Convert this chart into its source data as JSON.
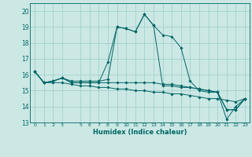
{
  "xlabel": "Humidex (Indice chaleur)",
  "background_color": "#cce8e4",
  "grid_color": "#99cccc",
  "line_color": "#006666",
  "xlim": [
    -0.5,
    23.5
  ],
  "ylim": [
    13,
    20.5
  ],
  "yticks": [
    13,
    14,
    15,
    16,
    17,
    18,
    19,
    20
  ],
  "xticks": [
    0,
    1,
    2,
    3,
    5,
    6,
    7,
    8,
    9,
    10,
    11,
    12,
    13,
    14,
    15,
    16,
    17,
    18,
    19,
    20,
    21,
    22,
    23
  ],
  "xtick_labels": [
    "0",
    "1",
    "2",
    "3",
    "5",
    "6",
    "7",
    "8",
    "9",
    "10",
    "11",
    "12",
    "13",
    "14",
    "15",
    "16",
    "17",
    "18",
    "19",
    "20",
    "21",
    "22",
    "23"
  ],
  "series": [
    [
      16.2,
      15.5,
      15.6,
      15.8,
      15.6,
      15.6,
      15.6,
      15.6,
      15.7,
      19.0,
      18.9,
      18.7,
      19.8,
      19.1,
      18.5,
      18.4,
      17.7,
      15.6,
      15.0,
      14.9,
      14.9,
      13.2,
      14.0,
      14.5
    ],
    [
      16.2,
      15.5,
      15.6,
      15.8,
      15.5,
      15.5,
      15.5,
      15.5,
      16.8,
      19.0,
      18.9,
      18.7,
      19.8,
      19.1,
      15.3,
      15.3,
      15.2,
      15.2,
      15.1,
      15.0,
      14.9,
      13.8,
      13.8,
      14.5
    ],
    [
      16.2,
      15.5,
      15.6,
      15.8,
      15.5,
      15.5,
      15.5,
      15.5,
      15.5,
      15.5,
      15.5,
      15.5,
      15.5,
      15.5,
      15.4,
      15.4,
      15.3,
      15.2,
      15.1,
      15.0,
      14.9,
      13.8,
      13.8,
      14.5
    ],
    [
      16.2,
      15.5,
      15.5,
      15.5,
      15.4,
      15.3,
      15.3,
      15.2,
      15.2,
      15.1,
      15.1,
      15.0,
      15.0,
      14.9,
      14.9,
      14.8,
      14.8,
      14.7,
      14.6,
      14.5,
      14.5,
      14.4,
      14.3,
      14.5
    ]
  ]
}
